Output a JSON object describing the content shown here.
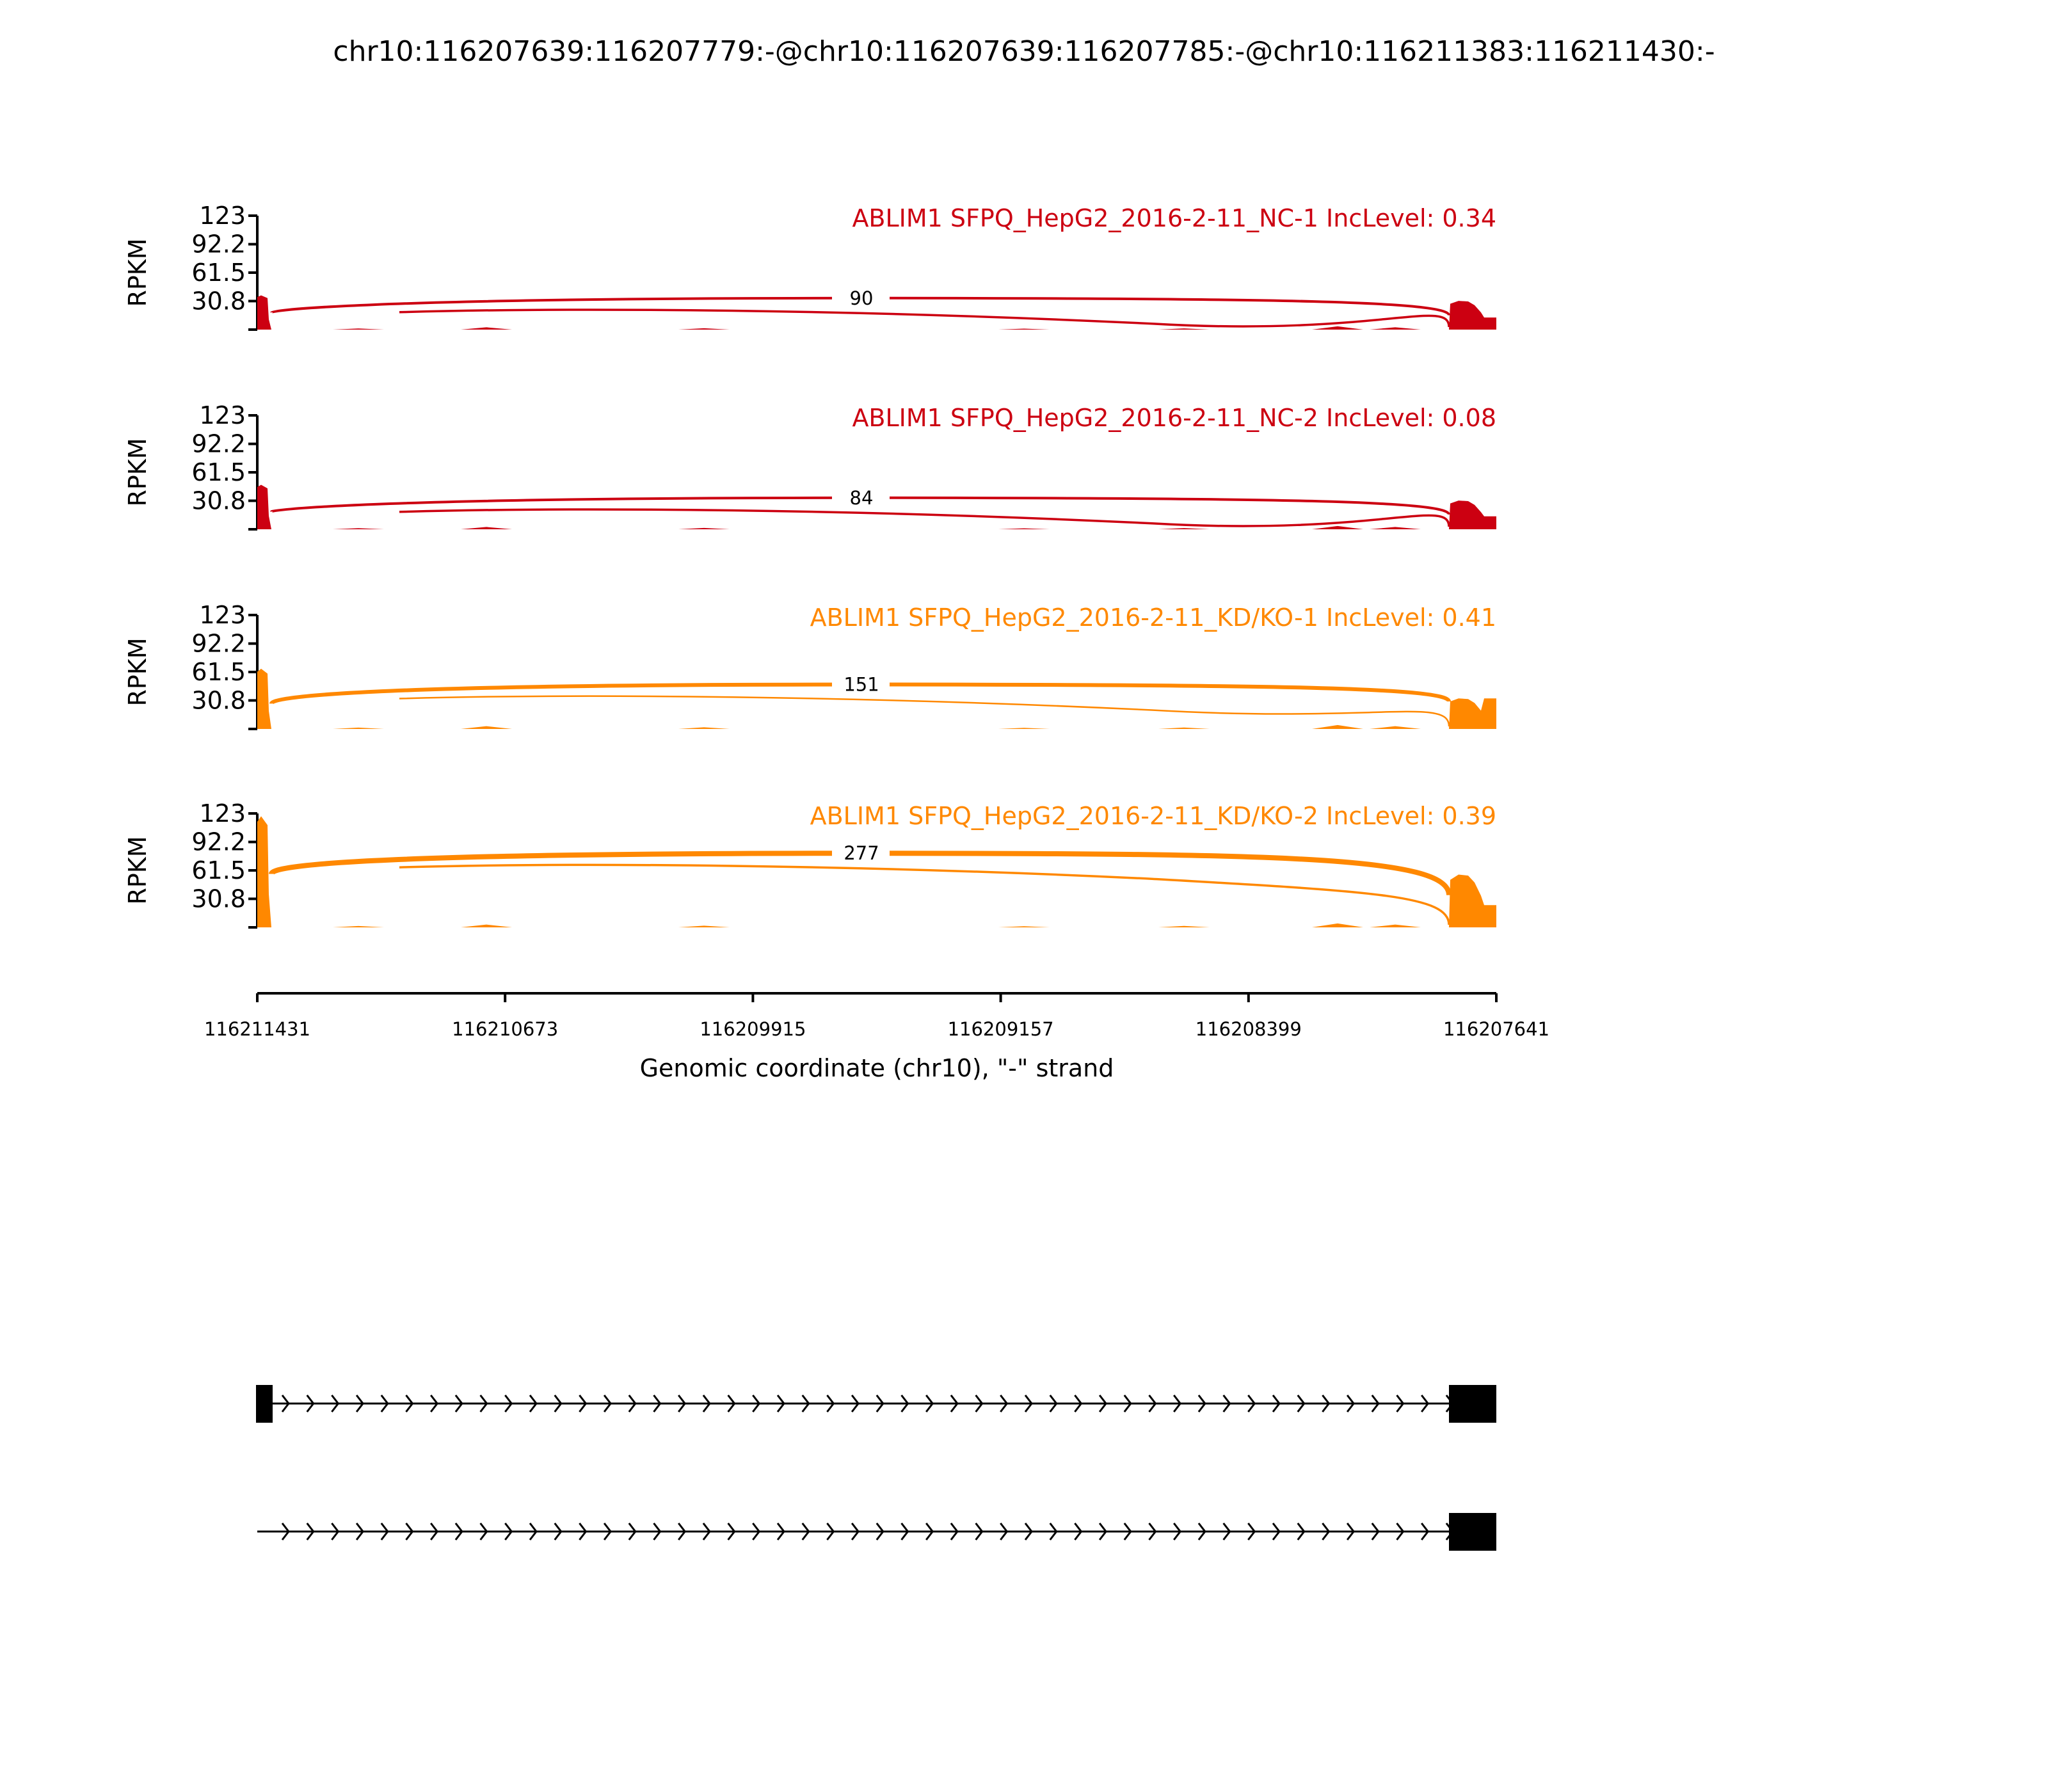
{
  "chart_data": {
    "type": "area",
    "title": "chr10:116207639:116207779:-@chr10:116207639:116207785:-@chr10:116211383:116211430:-",
    "xlabel": "Genomic coordinate (chr10), \"-\" strand",
    "ylabel": "RPKM",
    "xlim": [
      116211431,
      116207641
    ],
    "x_ticks": [
      "116211431",
      "116210673",
      "116209915",
      "116209157",
      "116208399",
      "116207641"
    ],
    "ylim": [
      0,
      123
    ],
    "y_ticks": [
      "123",
      "92.2",
      "61.5",
      "30.8"
    ],
    "panels": [
      {
        "label": "ABLIM1 SFPQ_HepG2_2016-2-11_NC-1 IncLevel: 0.34",
        "color": "#CC0011",
        "junction_count": "90",
        "left_exon_peak": 37,
        "right_exon_peak": 31,
        "right_tail": 13
      },
      {
        "label": "ABLIM1 SFPQ_HepG2_2016-2-11_NC-2 IncLevel: 0.08",
        "color": "#CC0011",
        "junction_count": "84",
        "left_exon_peak": 48,
        "right_exon_peak": 31,
        "right_tail": 14
      },
      {
        "label": "ABLIM1 SFPQ_HepG2_2016-2-11_KD/KO-1 IncLevel: 0.41",
        "color": "#FF8800",
        "junction_count": "151",
        "left_exon_peak": 65,
        "right_exon_peak": 33,
        "right_tail": 33
      },
      {
        "label": "ABLIM1 SFPQ_HepG2_2016-2-11_KD/KO-2 IncLevel: 0.39",
        "color": "#FF8800",
        "junction_count": "277",
        "left_exon_peak": 120,
        "right_exon_peak": 57,
        "right_tail": 24
      }
    ],
    "gene_tracks": [
      {
        "exons": [
          "left",
          "right"
        ]
      },
      {
        "exons": [
          "right"
        ]
      }
    ]
  }
}
